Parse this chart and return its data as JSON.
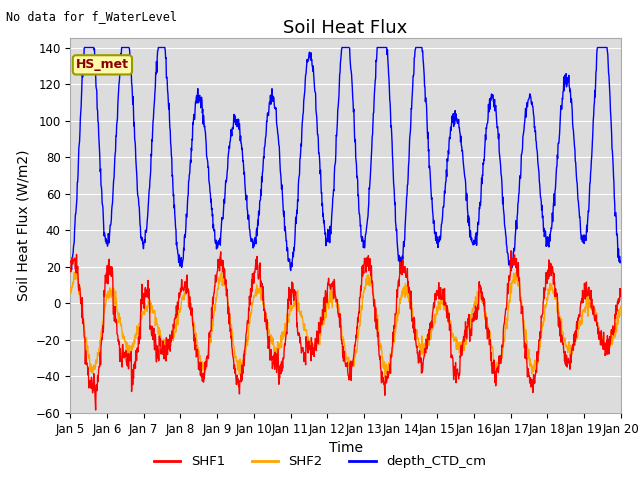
{
  "title": "Soil Heat Flux",
  "top_left_text": "No data for f_WaterLevel",
  "annotation_text": "HS_met",
  "xlabel": "Time",
  "ylabel": "Soil Heat Flux (W/m2)",
  "ylim": [
    -60,
    145
  ],
  "yticks": [
    -60,
    -40,
    -20,
    0,
    20,
    40,
    60,
    80,
    100,
    120,
    140
  ],
  "n_days": 15,
  "xtick_labels": [
    "Jan 5",
    "Jan 6",
    "Jan 7",
    "Jan 8",
    "Jan 9",
    "Jan 10",
    "Jan 11",
    "Jan 12",
    "Jan 13",
    "Jan 14",
    "Jan 15",
    "Jan 16",
    "Jan 17",
    "Jan 18",
    "Jan 19",
    "Jan 20"
  ],
  "color_SHF1": "#FF0000",
  "color_SHF2": "#FFA500",
  "color_depth": "#0000FF",
  "bg_color": "#DCDCDC",
  "legend_labels": [
    "SHF1",
    "SHF2",
    "depth_CTD_cm"
  ],
  "title_fontsize": 13,
  "axis_label_fontsize": 10,
  "tick_fontsize": 8.5,
  "annotation_box_color": "#FFFAAA",
  "annotation_border_color": "#999900",
  "line_width": 1.0
}
